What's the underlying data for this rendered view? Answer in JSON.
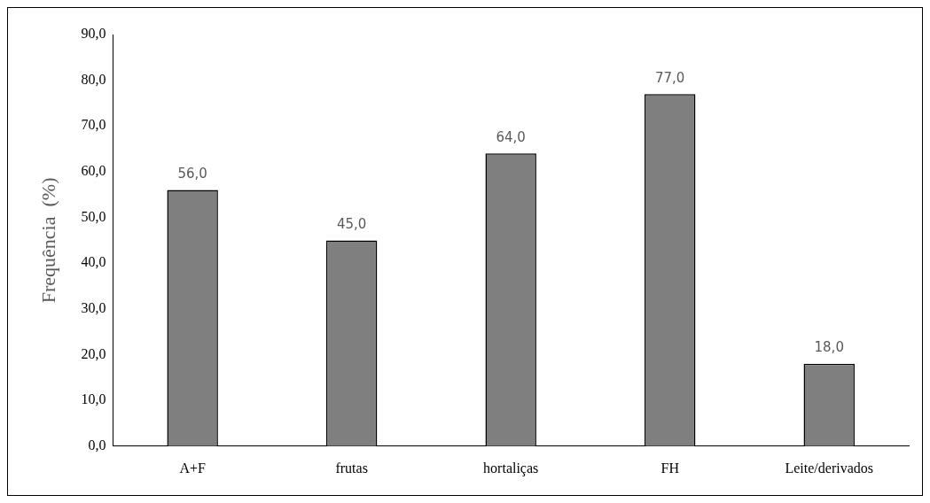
{
  "chart_data": {
    "type": "bar",
    "ylabel": "Frequência  (%)",
    "categories": [
      "A+F",
      "frutas",
      "hortaliças",
      "FH",
      "Leite/derivados"
    ],
    "values": [
      56,
      45,
      64,
      77,
      18
    ],
    "value_labels": [
      "56,0",
      "45,0",
      "64,0",
      "77,0",
      "18,0"
    ],
    "color": "#7f7f7f",
    "ylim": [
      0,
      90
    ],
    "yticks": [
      {
        "value": 0,
        "label": "0,0"
      },
      {
        "value": 10,
        "label": "10,0"
      },
      {
        "value": 20,
        "label": "20,0"
      },
      {
        "value": 30,
        "label": "30,0"
      },
      {
        "value": 40,
        "label": "40,0"
      },
      {
        "value": 50,
        "label": "50,0"
      },
      {
        "value": 60,
        "label": "60,0"
      },
      {
        "value": 70,
        "label": "70,0"
      },
      {
        "value": 80,
        "label": "80,0"
      },
      {
        "value": 90,
        "label": "90,0"
      }
    ],
    "grid": false,
    "legend": false
  }
}
